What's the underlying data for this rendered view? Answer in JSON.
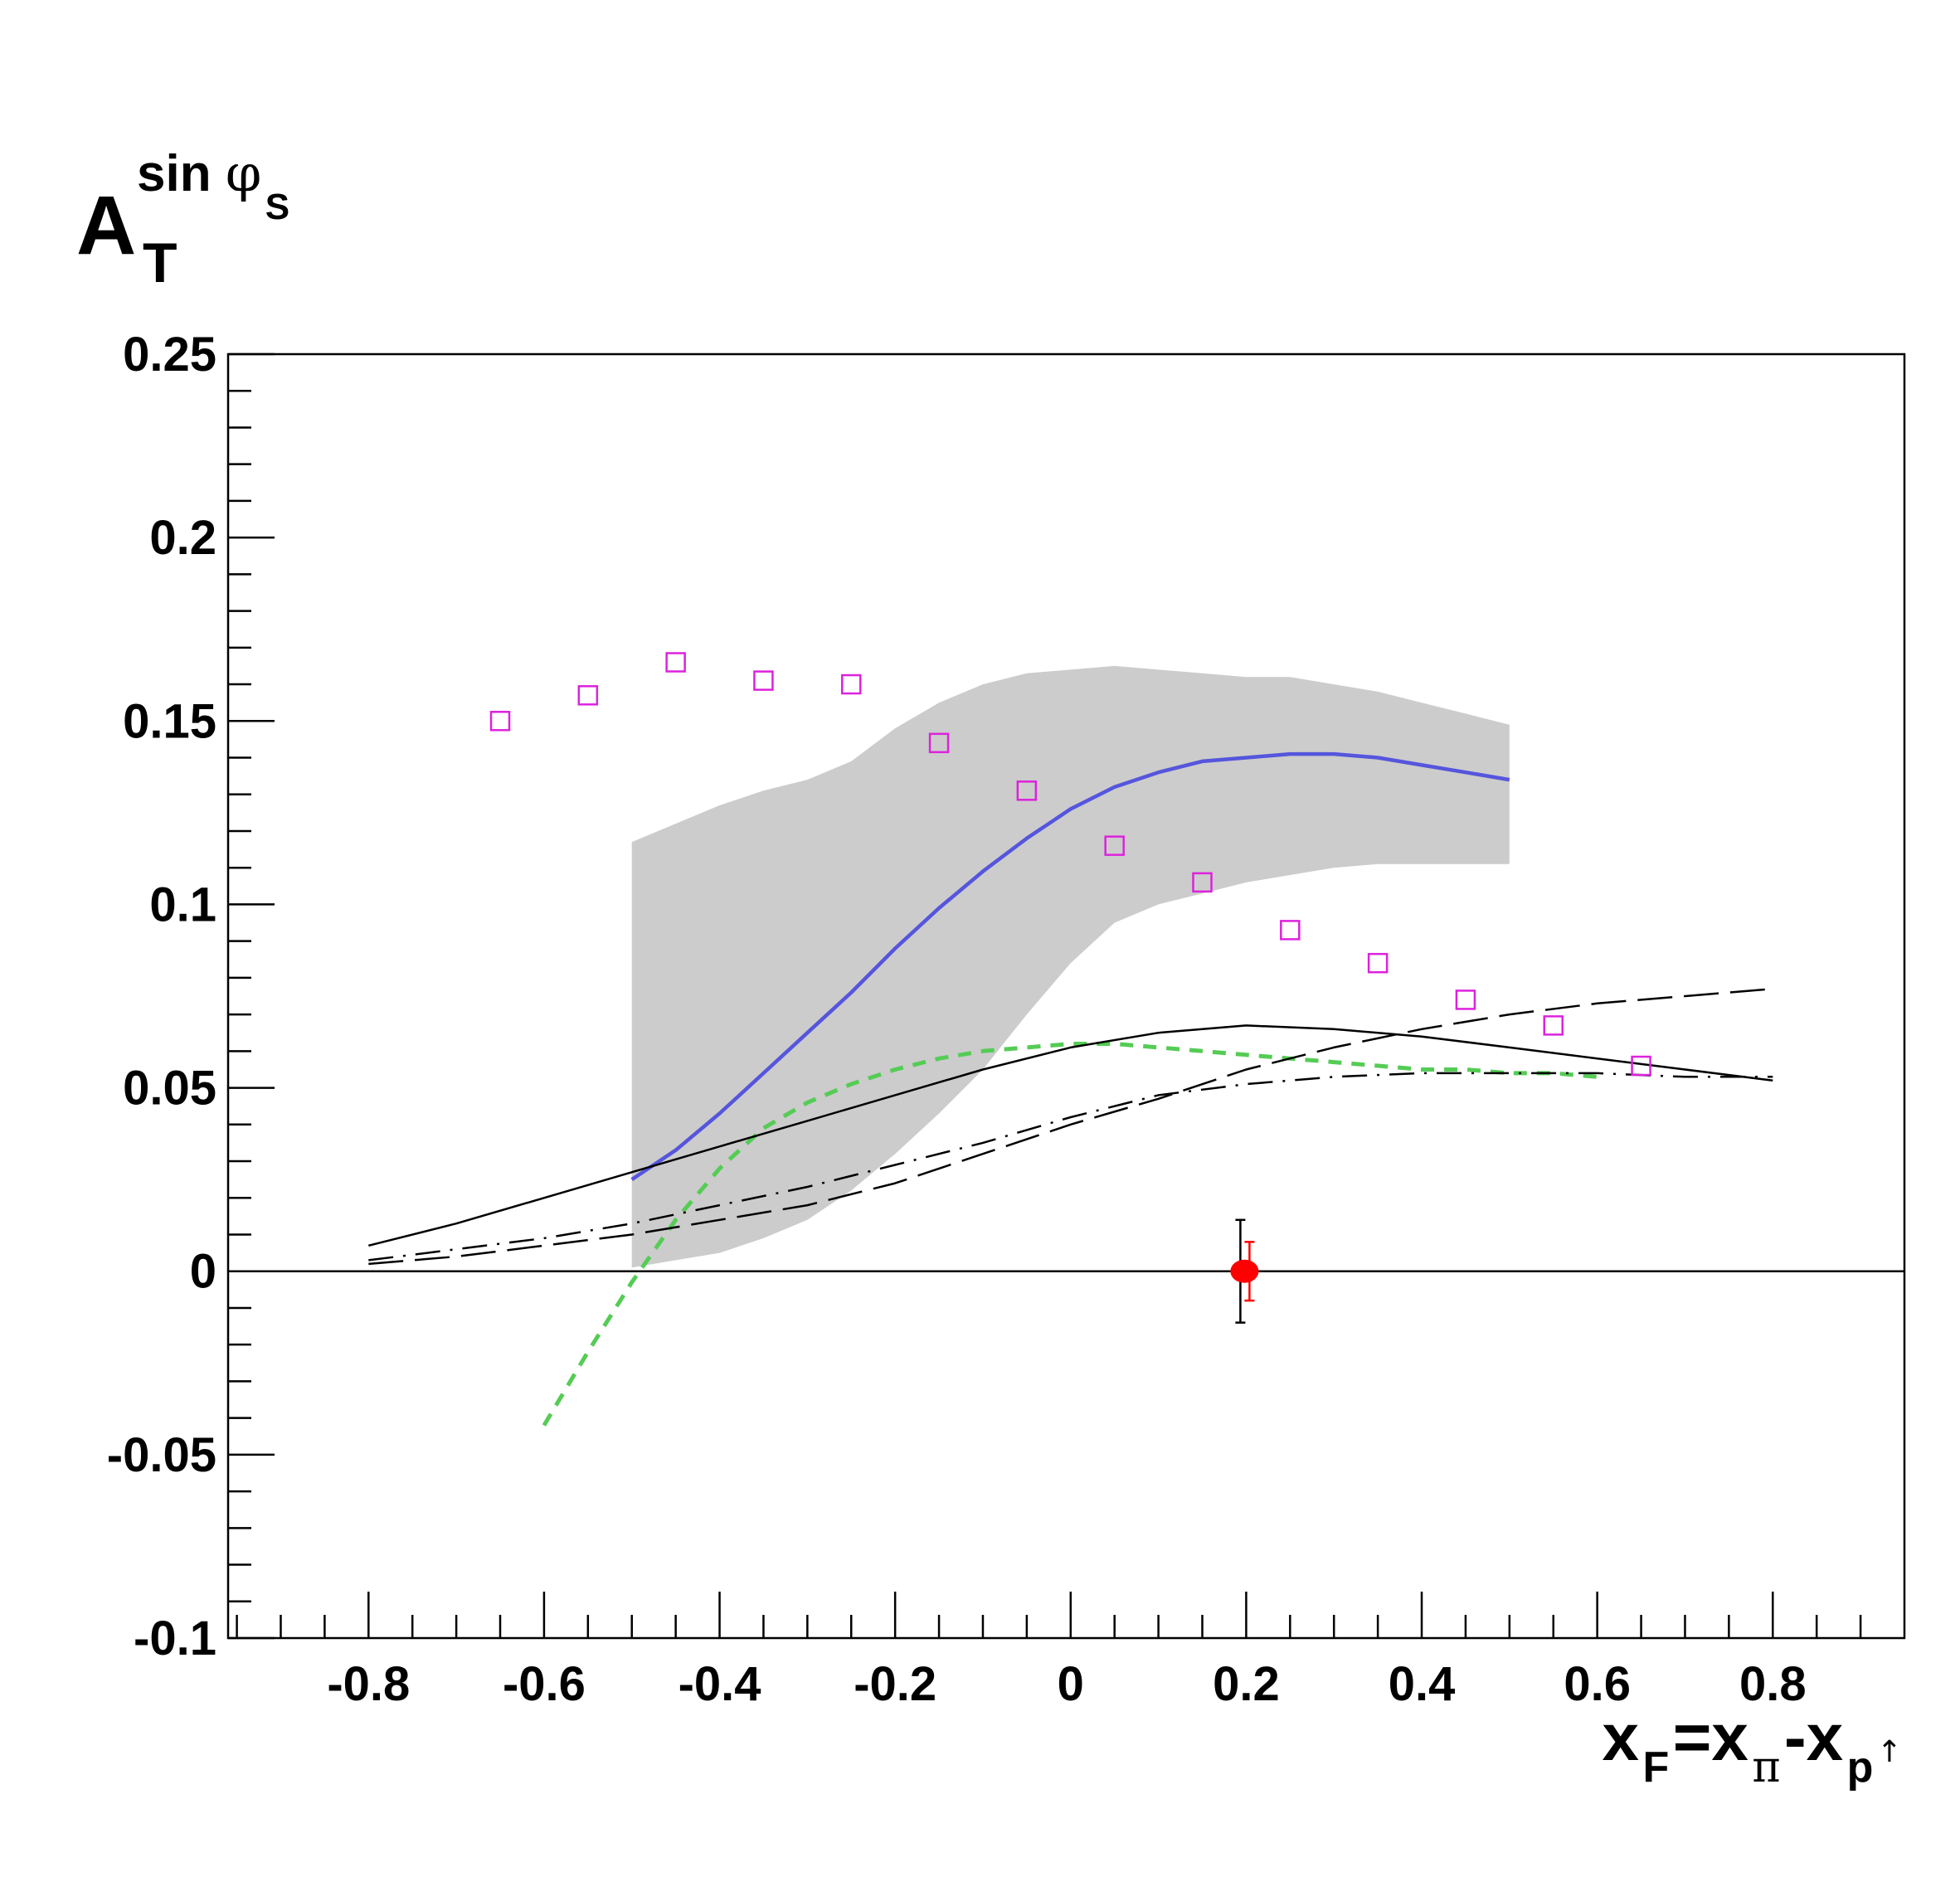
{
  "chart_data": {
    "type": "line",
    "title": "",
    "ylabel": {
      "main": "A",
      "sub": "T",
      "sup_text": "sin ",
      "sup_symbol": "φ",
      "sup_sub": "S"
    },
    "xlabel": {
      "x1": "x",
      "s1": "F",
      "eq": "=x",
      "s2": "π",
      "minus": "-x",
      "s3": "p",
      "arrow": "↑"
    },
    "xlim": [
      -0.96,
      0.95
    ],
    "ylim": [
      -0.1,
      0.25
    ],
    "x_ticks": [
      "-0.8",
      "-0.6",
      "-0.4",
      "-0.2",
      "0",
      "0.2",
      "0.4",
      "0.6",
      "0.8"
    ],
    "x_tick_values": [
      -0.8,
      -0.6,
      -0.4,
      -0.2,
      0,
      0.2,
      0.4,
      0.6,
      0.8
    ],
    "y_ticks": [
      "-0.1",
      "-0.05",
      "0",
      "0.05",
      "0.1",
      "0.15",
      "0.2",
      "0.25"
    ],
    "y_tick_values": [
      -0.1,
      -0.05,
      0,
      0.05,
      0.1,
      0.15,
      0.2,
      0.25
    ],
    "grid": false,
    "legend": "none",
    "zero_line": 0,
    "band": {
      "color": "#cccccc",
      "x": [
        -0.5,
        -0.45,
        -0.4,
        -0.35,
        -0.3,
        -0.25,
        -0.2,
        -0.15,
        -0.1,
        -0.05,
        0.0,
        0.05,
        0.1,
        0.15,
        0.2,
        0.25,
        0.3,
        0.35,
        0.4,
        0.45,
        0.5
      ],
      "upper": [
        0.117,
        0.122,
        0.127,
        0.131,
        0.134,
        0.139,
        0.148,
        0.155,
        0.16,
        0.163,
        0.164,
        0.165,
        0.164,
        0.163,
        0.162,
        0.162,
        0.16,
        0.158,
        0.155,
        0.152,
        0.149
      ],
      "lower": [
        0.001,
        0.003,
        0.005,
        0.009,
        0.014,
        0.022,
        0.032,
        0.043,
        0.055,
        0.07,
        0.084,
        0.095,
        0.1,
        0.103,
        0.106,
        0.108,
        0.11,
        0.111,
        0.111,
        0.111,
        0.111
      ]
    },
    "series": [
      {
        "color": "#5555dd",
        "style": "solid",
        "width": 4.5,
        "x": [
          -0.5,
          -0.45,
          -0.4,
          -0.35,
          -0.3,
          -0.25,
          -0.2,
          -0.15,
          -0.1,
          -0.05,
          0.0,
          0.05,
          0.1,
          0.15,
          0.2,
          0.25,
          0.3,
          0.35,
          0.4,
          0.45,
          0.5
        ],
        "y": [
          0.025,
          0.033,
          0.043,
          0.054,
          0.065,
          0.076,
          0.088,
          0.099,
          0.109,
          0.118,
          0.126,
          0.132,
          0.136,
          0.139,
          0.14,
          0.141,
          0.141,
          0.14,
          0.138,
          0.136,
          0.134
        ]
      },
      {
        "color": "#55cc55",
        "style": "dashed",
        "width": 5,
        "x": [
          -0.6,
          -0.55,
          -0.5,
          -0.45,
          -0.4,
          -0.35,
          -0.3,
          -0.25,
          -0.2,
          -0.15,
          -0.1,
          -0.05,
          0.0,
          0.05,
          0.1,
          0.15,
          0.2,
          0.25,
          0.3,
          0.35,
          0.4,
          0.45,
          0.5,
          0.55,
          0.6
        ],
        "y": [
          -0.042,
          -0.022,
          -0.003,
          0.014,
          0.028,
          0.039,
          0.046,
          0.051,
          0.055,
          0.058,
          0.06,
          0.061,
          0.062,
          0.062,
          0.061,
          0.06,
          0.059,
          0.058,
          0.057,
          0.056,
          0.055,
          0.055,
          0.054,
          0.054,
          0.053
        ]
      },
      {
        "color": "#000000",
        "style": "solid",
        "width": 2.5,
        "x": [
          -0.8,
          -0.7,
          -0.6,
          -0.5,
          -0.4,
          -0.3,
          -0.2,
          -0.1,
          0.0,
          0.1,
          0.2,
          0.3,
          0.4,
          0.5,
          0.6,
          0.7,
          0.8
        ],
        "y": [
          0.007,
          0.013,
          0.02,
          0.027,
          0.034,
          0.041,
          0.048,
          0.055,
          0.061,
          0.065,
          0.067,
          0.066,
          0.064,
          0.061,
          0.058,
          0.055,
          0.052
        ]
      },
      {
        "color": "#000000",
        "style": "dashdot",
        "width": 2.5,
        "x": [
          -0.8,
          -0.7,
          -0.6,
          -0.5,
          -0.4,
          -0.3,
          -0.2,
          -0.1,
          0.0,
          0.1,
          0.2,
          0.3,
          0.4,
          0.5,
          0.6,
          0.7,
          0.8
        ],
        "y": [
          0.003,
          0.006,
          0.009,
          0.013,
          0.018,
          0.023,
          0.029,
          0.035,
          0.042,
          0.048,
          0.051,
          0.053,
          0.054,
          0.054,
          0.054,
          0.053,
          0.053
        ]
      },
      {
        "color": "#000000",
        "style": "longdash",
        "width": 2.5,
        "x": [
          -0.8,
          -0.7,
          -0.6,
          -0.5,
          -0.4,
          -0.3,
          -0.2,
          -0.1,
          0.0,
          0.1,
          0.2,
          0.3,
          0.4,
          0.5,
          0.6,
          0.7,
          0.8
        ],
        "y": [
          0.002,
          0.004,
          0.007,
          0.01,
          0.014,
          0.018,
          0.024,
          0.032,
          0.04,
          0.047,
          0.055,
          0.061,
          0.066,
          0.07,
          0.073,
          0.075,
          0.077
        ]
      }
    ],
    "markers": {
      "shape": "open-square",
      "color": "#dd22dd",
      "x": [
        -0.65,
        -0.55,
        -0.45,
        -0.35,
        -0.25,
        -0.15,
        -0.05,
        0.05,
        0.15,
        0.25,
        0.35,
        0.45,
        0.55,
        0.65
      ],
      "y": [
        0.15,
        0.157,
        0.166,
        0.161,
        0.16,
        0.144,
        0.131,
        0.116,
        0.106,
        0.093,
        0.084,
        0.074,
        0.067,
        0.056
      ]
    },
    "data_point": {
      "x": 0.2,
      "y": 0.0,
      "color": "#ff0000",
      "err_total": 0.014,
      "err_total_color": "#000000",
      "err_stat": 0.008,
      "err_stat_color": "#ff0000"
    }
  }
}
